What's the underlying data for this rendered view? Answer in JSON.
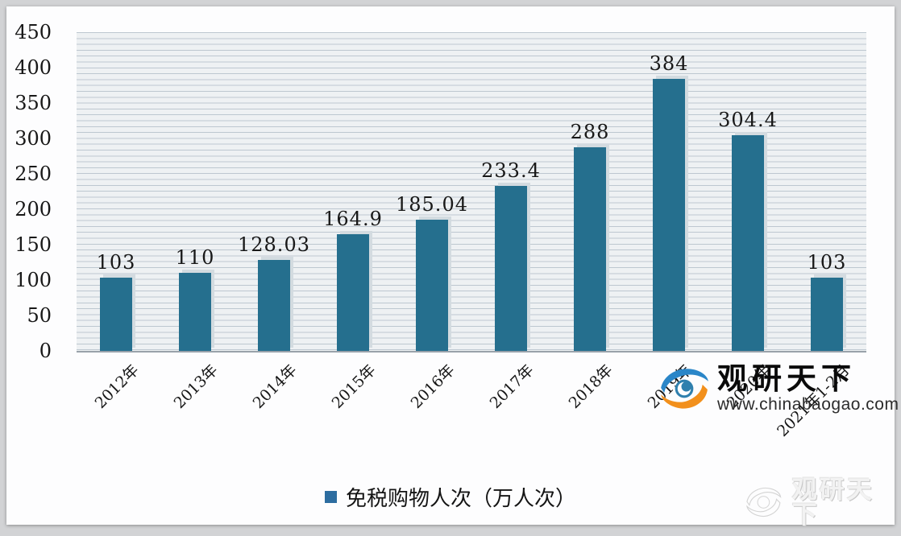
{
  "chart_data": {
    "type": "bar",
    "title": "",
    "xlabel": "",
    "ylabel": "",
    "categories": [
      "2012年",
      "2013年",
      "2014年",
      "2015年",
      "2016年",
      "2017年",
      "2018年",
      "2019年",
      "2020年",
      "2021年1-2月"
    ],
    "values": [
      103,
      110,
      128.03,
      164.9,
      185.04,
      233.4,
      288,
      384,
      304.4,
      103
    ],
    "value_labels": [
      "103",
      "110",
      "128.03",
      "164.9",
      "185.04",
      "233.4",
      "288",
      "384",
      "304.4",
      "103"
    ],
    "ylim": [
      0,
      450
    ],
    "y_ticks": [
      0,
      50,
      100,
      150,
      200,
      250,
      300,
      350,
      400,
      450
    ],
    "grid": "horizontal-stripes",
    "legend_position": "bottom",
    "bar_color": "#256f8e"
  },
  "legend": {
    "label": "免税购物人次（万人次）",
    "swatch_color": "#2d6da0"
  },
  "watermark": {
    "brand": "观研天下",
    "url": "www.chinabaogao.com",
    "logo_blue": "#2a86c8",
    "logo_orange": "#f2901c",
    "logo_core": "#2f80ae"
  },
  "ghost_watermark": {
    "brand": "观研天下"
  }
}
